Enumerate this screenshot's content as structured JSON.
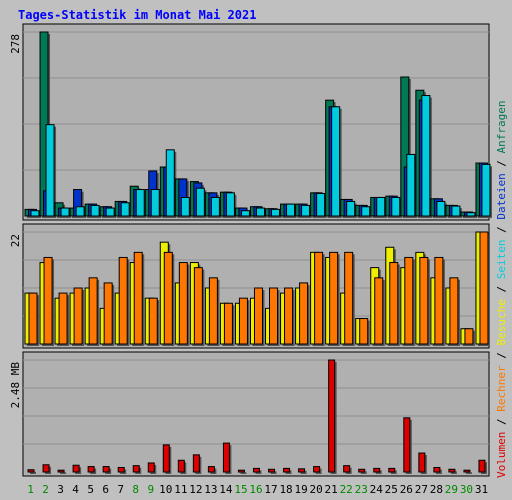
{
  "chart_data": [
    {
      "type": "bar",
      "title": "Tages-Statistik im Monat Mai 2021",
      "panel": "top",
      "y_tick_label": "278",
      "ylim": [
        0,
        278
      ],
      "grid": true,
      "categories": [
        "1",
        "2",
        "3",
        "4",
        "5",
        "6",
        "7",
        "8",
        "9",
        "10",
        "11",
        "12",
        "13",
        "14",
        "15",
        "16",
        "17",
        "18",
        "19",
        "20",
        "21",
        "22",
        "23",
        "24",
        "25",
        "26",
        "27",
        "28",
        "29",
        "30",
        "31"
      ],
      "series": [
        {
          "name": "Anfragen",
          "values": [
            10,
            278,
            20,
            12,
            18,
            14,
            22,
            45,
            40,
            74,
            56,
            52,
            35,
            36,
            12,
            14,
            11,
            18,
            18,
            35,
            175,
            25,
            16,
            28,
            30,
            210,
            190,
            26,
            16,
            6,
            80
          ]
        },
        {
          "name": "Dateien",
          "values": [
            10,
            38,
            12,
            40,
            18,
            14,
            22,
            40,
            68,
            74,
            56,
            50,
            35,
            36,
            12,
            14,
            11,
            18,
            18,
            35,
            165,
            25,
            16,
            28,
            30,
            74,
            175,
            26,
            16,
            6,
            80
          ]
        },
        {
          "name": "Seiten",
          "values": [
            8,
            138,
            12,
            14,
            16,
            12,
            20,
            40,
            40,
            100,
            28,
            42,
            28,
            35,
            8,
            12,
            10,
            18,
            16,
            34,
            165,
            22,
            14,
            28,
            28,
            93,
            182,
            22,
            15,
            5,
            78
          ]
        }
      ]
    },
    {
      "type": "bar",
      "panel": "middle",
      "y_tick_label": "22",
      "ylim": [
        0,
        22
      ],
      "grid": true,
      "categories": [
        "1",
        "2",
        "3",
        "4",
        "5",
        "6",
        "7",
        "8",
        "9",
        "10",
        "11",
        "12",
        "13",
        "14",
        "15",
        "16",
        "17",
        "18",
        "19",
        "20",
        "21",
        "22",
        "23",
        "24",
        "25",
        "26",
        "27",
        "28",
        "29",
        "30",
        "31"
      ],
      "series": [
        {
          "name": "Besuche",
          "values": [
            10,
            16,
            9,
            10,
            11,
            7,
            10,
            16,
            9,
            20,
            12,
            16,
            11,
            8,
            8,
            9,
            7,
            10,
            11,
            18,
            17,
            10,
            5,
            15,
            19,
            15,
            18,
            13,
            11,
            3,
            22
          ]
        },
        {
          "name": "Rechner",
          "values": [
            10,
            17,
            10,
            11,
            13,
            12,
            17,
            18,
            9,
            18,
            16,
            15,
            13,
            8,
            9,
            11,
            11,
            11,
            12,
            18,
            18,
            18,
            5,
            13,
            16,
            17,
            17,
            17,
            13,
            3,
            22
          ]
        }
      ]
    },
    {
      "type": "bar",
      "panel": "bottom",
      "y_tick_label": "2.48 MB",
      "ylim": [
        0,
        2.48
      ],
      "grid": true,
      "categories": [
        "1",
        "2",
        "3",
        "4",
        "5",
        "6",
        "7",
        "8",
        "9",
        "10",
        "11",
        "12",
        "13",
        "14",
        "15",
        "16",
        "17",
        "18",
        "19",
        "20",
        "21",
        "22",
        "23",
        "24",
        "25",
        "26",
        "27",
        "28",
        "29",
        "30",
        "31"
      ],
      "series": [
        {
          "name": "Volumen",
          "values": [
            0.05,
            0.16,
            0.04,
            0.15,
            0.12,
            0.12,
            0.1,
            0.14,
            0.2,
            0.6,
            0.26,
            0.38,
            0.12,
            0.64,
            0.04,
            0.08,
            0.06,
            0.08,
            0.07,
            0.12,
            2.48,
            0.14,
            0.06,
            0.08,
            0.08,
            1.2,
            0.42,
            0.1,
            0.06,
            0.04,
            0.26
          ]
        }
      ]
    }
  ],
  "legend": {
    "parts": [
      {
        "label": "Volumen",
        "color": "#dd0000"
      },
      {
        "label": "Rechner",
        "color": "#ff7700"
      },
      {
        "label": "Besuche",
        "color": "#eeee00"
      },
      {
        "label": "Seiten",
        "color": "#00ccdd"
      },
      {
        "label": "Dateien",
        "color": "#0033cc"
      },
      {
        "label": "Anfragen",
        "color": "#007755"
      }
    ],
    "separator": " / "
  },
  "x_axis": {
    "weekend_days": [
      "1",
      "2",
      "8",
      "9",
      "15",
      "16",
      "22",
      "23",
      "29",
      "30"
    ],
    "weekday_color": "#000000",
    "weekend_color": "#008800"
  },
  "colors": {
    "title": "#0000ff",
    "background": "#c0c0c0",
    "panel": "#b0b0b0",
    "grid": "#909090",
    "anfragen": "#007755",
    "dateien": "#0033cc",
    "seiten": "#00ccdd",
    "besuche": "#eeee00",
    "rechner": "#ff7700",
    "volumen": "#dd0000"
  }
}
